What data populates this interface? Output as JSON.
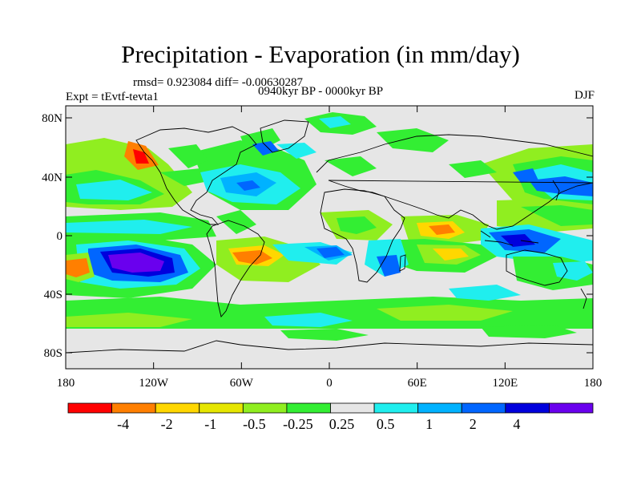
{
  "title": "Precipitation - Evaporation (in mm/day)",
  "stats": "rmsd= 0.923084 diff= -0.00630287",
  "experiment": "Expt = tEvtf-tevta1",
  "period": "0940kyr BP - 0000kyr BP",
  "season": "DJF",
  "y_ticks": [
    "80N",
    "40N",
    "0",
    "40S",
    "80S"
  ],
  "x_ticks": [
    "180",
    "120W",
    "60W",
    "0",
    "60E",
    "120E",
    "180"
  ],
  "colorbar": {
    "colors": [
      "#ff0000",
      "#ff7f00",
      "#ffd700",
      "#e6e600",
      "#90ee20",
      "#33ee33",
      "#e6e6e6",
      "#20eeee",
      "#00b2ff",
      "#0066ff",
      "#0000dd",
      "#6a00ee"
    ],
    "labels": [
      "-4",
      "-2",
      "-1",
      "-0.5",
      "-0.25",
      "0.25",
      "0.5",
      "1",
      "2",
      "4"
    ]
  },
  "colors": {
    "background": "#e6e6e6",
    "coastline": "#000000"
  }
}
